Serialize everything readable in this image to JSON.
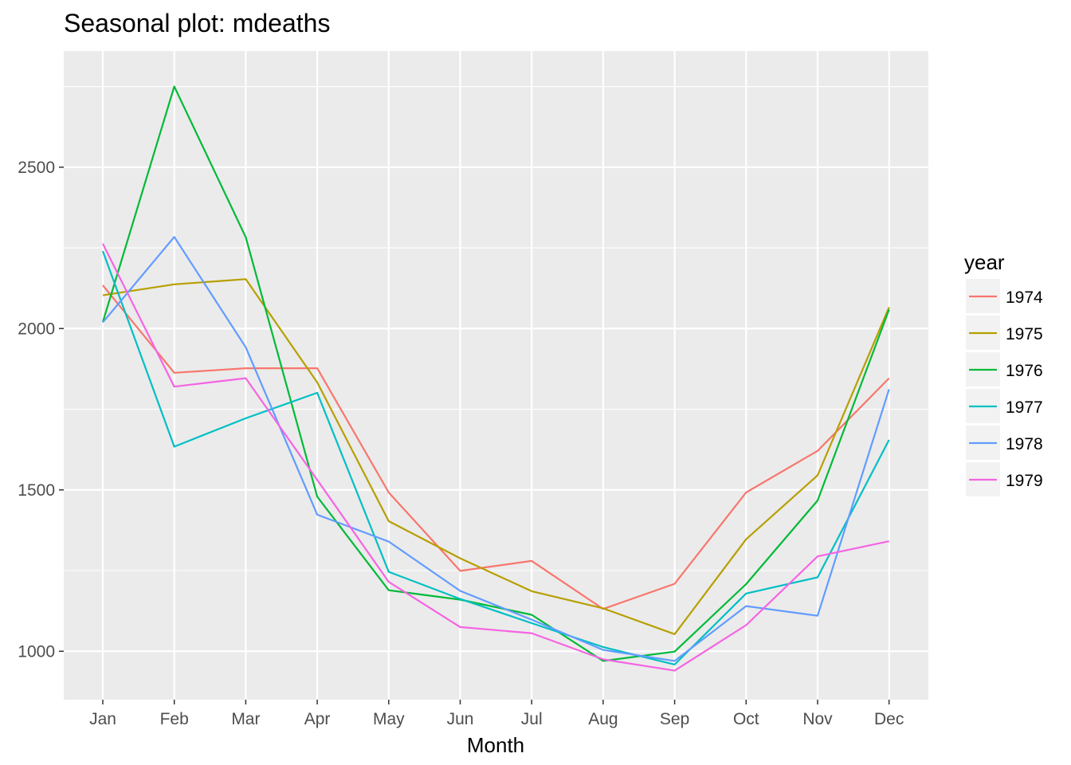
{
  "chart_data": {
    "type": "line",
    "title": "Seasonal plot: mdeaths",
    "xlabel": "Month",
    "ylabel": "",
    "categories": [
      "Jan",
      "Feb",
      "Mar",
      "Apr",
      "May",
      "Jun",
      "Jul",
      "Aug",
      "Sep",
      "Oct",
      "Nov",
      "Dec"
    ],
    "ylim": [
      850,
      2860
    ],
    "yticks": [
      1000,
      1500,
      2000,
      2500
    ],
    "legend": {
      "title": "year",
      "position": "right"
    },
    "grid": true,
    "series": [
      {
        "name": "1974",
        "color": "#F8766D",
        "values": [
          2134,
          1863,
          1877,
          1877,
          1492,
          1249,
          1280,
          1131,
          1209,
          1492,
          1621,
          1846
        ]
      },
      {
        "name": "1975",
        "color": "#B79F00",
        "values": [
          2103,
          2137,
          2153,
          1833,
          1403,
          1288,
          1186,
          1133,
          1053,
          1347,
          1545,
          2066
        ]
      },
      {
        "name": "1976",
        "color": "#00BA38",
        "values": [
          2020,
          2750,
          2283,
          1479,
          1189,
          1160,
          1113,
          970,
          999,
          1208,
          1467,
          2059
        ]
      },
      {
        "name": "1977",
        "color": "#00BFC4",
        "values": [
          2240,
          1634,
          1722,
          1801,
          1246,
          1162,
          1087,
          1013,
          959,
          1179,
          1229,
          1655
        ]
      },
      {
        "name": "1978",
        "color": "#619CFF",
        "values": [
          2019,
          2284,
          1942,
          1423,
          1340,
          1187,
          1098,
          1004,
          970,
          1140,
          1110,
          1812
        ]
      },
      {
        "name": "1979",
        "color": "#F564E3",
        "values": [
          2263,
          1820,
          1846,
          1531,
          1215,
          1075,
          1056,
          975,
          940,
          1081,
          1294,
          1341
        ]
      }
    ]
  }
}
